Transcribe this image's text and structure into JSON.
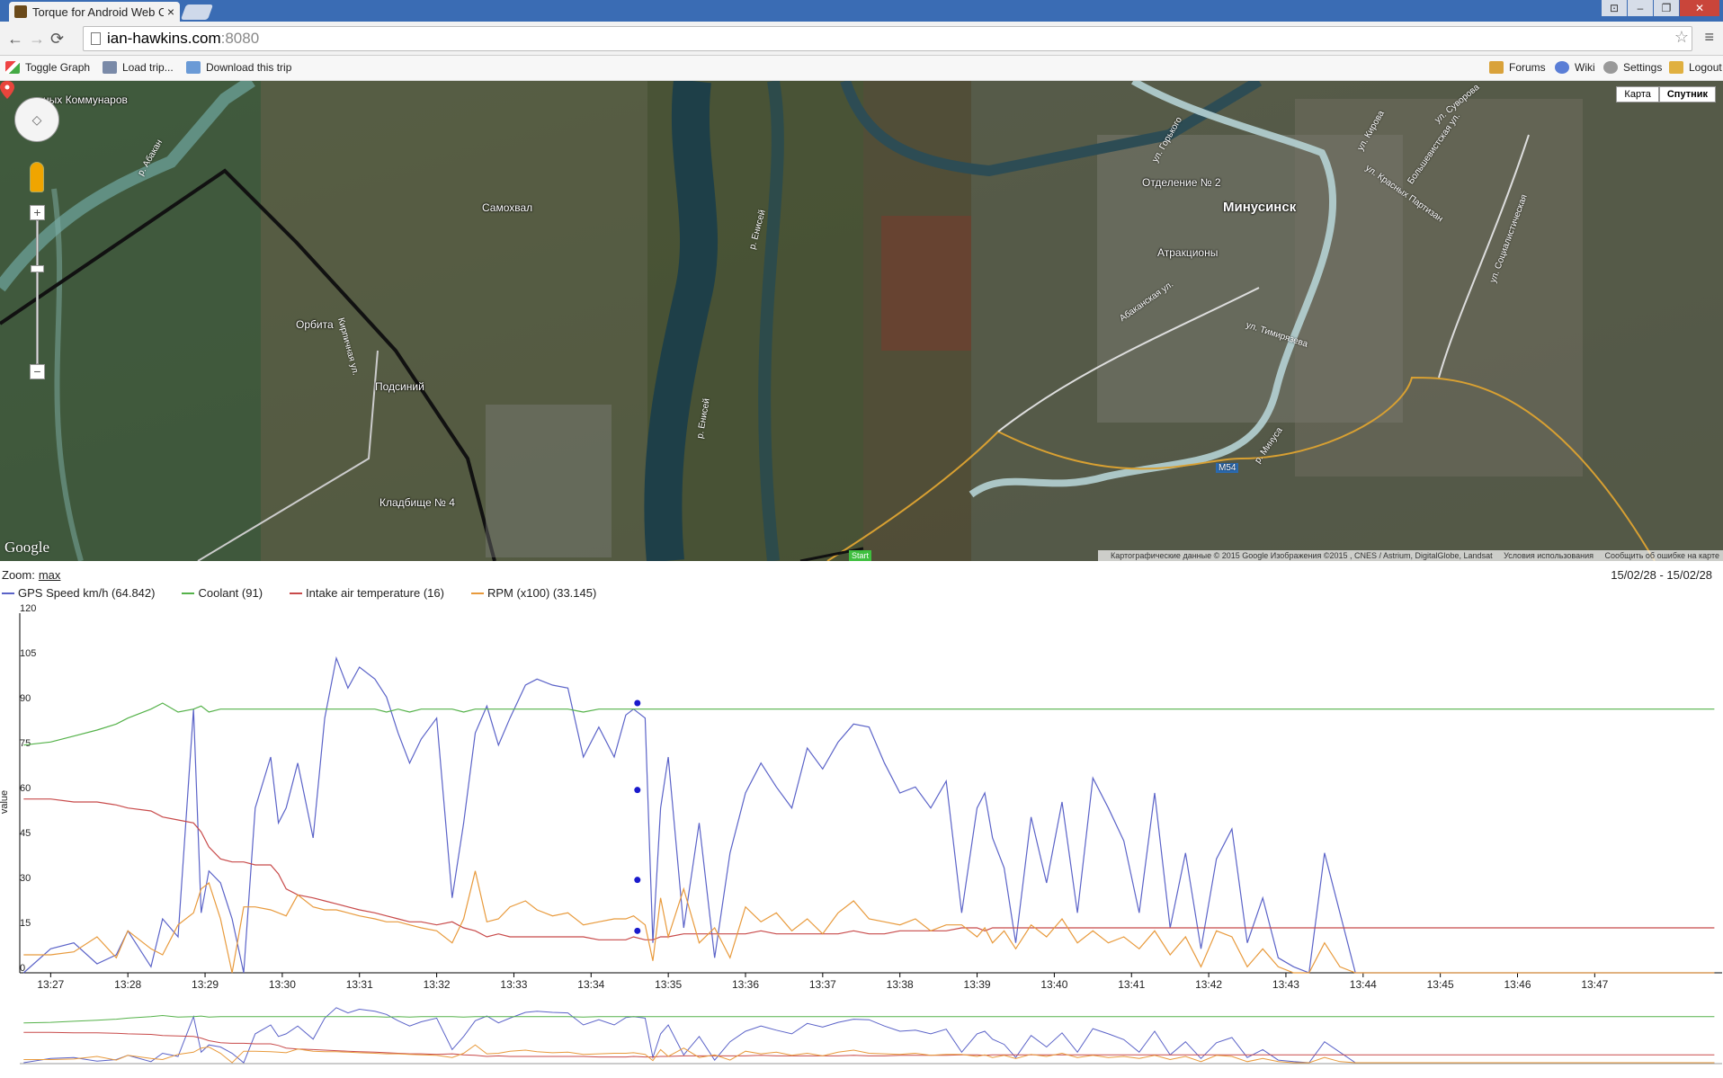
{
  "browser": {
    "tab_title": "Torque for Android Web C",
    "tab_close": "×",
    "url_host": "ian-hawkins.com",
    "url_port": ":8080",
    "window_controls": [
      "⊡",
      "–",
      "❐",
      "✕"
    ]
  },
  "toolbar": {
    "toggle_graph": "Toggle Graph",
    "load_trip": "Load trip...",
    "download_trip": "Download this trip",
    "forums": "Forums",
    "wiki": "Wiki",
    "settings": "Settings",
    "logout": "Logout"
  },
  "map": {
    "map_type_map": "Карта",
    "map_type_satellite": "Спутник",
    "labels": {
      "samokhval": "Самохвал",
      "orbita": "Орбита",
      "podsiniy": "Подсиний",
      "kladbishche": "Кладбище № 4",
      "minusinsk": "Минусинск",
      "otdelenie": "Отделение № 2",
      "attraktsiony": "Атракционы",
      "kommunarov": "ных Коммунаров"
    },
    "roads": {
      "m54": "M54",
      "timiryazeva": "ул. Тимирязева",
      "yenisei_1": "р. Енисей",
      "yenisei_2": "р. Енисей",
      "abakan": "р. Абакан",
      "minusa": "р. Минуса",
      "kirova": "ул. Кирова",
      "suvorova": "ул. Суворова",
      "krasnyh_partizan": "ул. Красных Партизан",
      "bolshevistskaya": "Большевистская ул.",
      "sotsialisticheskaya": "ул. Социалистическая",
      "gorkogo": "ул. Горького",
      "abakanskaya": "Абаканская ул.",
      "kirpichnaya": "Кирпичная ул."
    },
    "google_logo": "Google",
    "attribution": "Картографические данные © 2015 Google Изображения ©2015 , CNES / Astrium, DigitalGlobe, Landsat",
    "terms": "Условия использования",
    "report": "Сообщить об ошибке на карте",
    "start_badge": "Start"
  },
  "graph": {
    "zoom_label": "Zoom:",
    "zoom_value": "max",
    "date_range": "15/02/28 - 15/02/28",
    "ylabel": "value"
  },
  "chart_data": {
    "type": "line",
    "xlabel": "",
    "ylabel": "value",
    "ylim": [
      0,
      120
    ],
    "yticks": [
      0,
      15,
      30,
      45,
      60,
      75,
      90,
      105,
      120
    ],
    "xticks": [
      "13:27",
      "13:28",
      "13:29",
      "13:30",
      "13:31",
      "13:32",
      "13:33",
      "13:34",
      "13:35",
      "13:36",
      "13:37",
      "13:38",
      "13:39",
      "13:40",
      "13:41",
      "13:42",
      "13:43",
      "13:44",
      "13:45",
      "13:46",
      "13:47"
    ],
    "x_minutes": [
      -0.35,
      0.0,
      0.3,
      0.6,
      0.85,
      1.0,
      1.3,
      1.45,
      1.65,
      1.85,
      1.95,
      2.05,
      2.2,
      2.35,
      2.5,
      2.65,
      2.85,
      2.95,
      3.05,
      3.2,
      3.4,
      3.55,
      3.7,
      3.85,
      4.0,
      4.2,
      4.35,
      4.5,
      4.65,
      4.8,
      5.0,
      5.2,
      5.35,
      5.5,
      5.65,
      5.8,
      5.95,
      6.15,
      6.3,
      6.5,
      6.7,
      6.9,
      7.1,
      7.3,
      7.45,
      7.55,
      7.7,
      7.8,
      7.9,
      8.0,
      8.2,
      8.4,
      8.6,
      8.8,
      9.0,
      9.2,
      9.4,
      9.6,
      9.8,
      10.0,
      10.2,
      10.4,
      10.6,
      10.8,
      11.0,
      11.2,
      11.4,
      11.6,
      11.8,
      12.0,
      12.1,
      12.2,
      12.35,
      12.5,
      12.7,
      12.9,
      13.1,
      13.3,
      13.5,
      13.7,
      13.9,
      14.1,
      14.3,
      14.5,
      14.7,
      14.9,
      15.1,
      15.3,
      15.5,
      15.7,
      15.9,
      16.1,
      16.3,
      16.5,
      16.7,
      16.9,
      17.1,
      17.3,
      17.5,
      17.7,
      17.9,
      18.1,
      18.3,
      18.5,
      18.7,
      18.9,
      19.1,
      19.3,
      19.5,
      19.7,
      19.9,
      20.1,
      20.3,
      20.5,
      20.7,
      20.9,
      21.1,
      21.3,
      21.55
    ],
    "series": [
      {
        "name": "GPS Speed km/h (64.842)",
        "color": "#5b63c8",
        "values": [
          0,
          8,
          10,
          3,
          6,
          14,
          2,
          18,
          12,
          88,
          20,
          34,
          30,
          18,
          0,
          55,
          72,
          50,
          55,
          70,
          45,
          85,
          105,
          95,
          102,
          98,
          92,
          80,
          70,
          78,
          85,
          25,
          50,
          80,
          89,
          76,
          85,
          96,
          98,
          96,
          95,
          72,
          82,
          72,
          86,
          88,
          85,
          10,
          55,
          72,
          15,
          50,
          5,
          40,
          60,
          70,
          62,
          55,
          75,
          68,
          77,
          83,
          82,
          70,
          60,
          62,
          55,
          64,
          20,
          55,
          60,
          45,
          35,
          10,
          52,
          30,
          57,
          20,
          65,
          55,
          44,
          20,
          60,
          15,
          40,
          8,
          38,
          48,
          10,
          25,
          5,
          2,
          0,
          40,
          20,
          0,
          0,
          0,
          0,
          0,
          0,
          0,
          0,
          0,
          0,
          0,
          0,
          0,
          0,
          0,
          0,
          0,
          0,
          0,
          0,
          0,
          0,
          0,
          0
        ],
        "values_note_trim": true
      },
      {
        "name": "Coolant (91)",
        "color": "#55b24a",
        "values": [
          76,
          77,
          79,
          81,
          83,
          85,
          88,
          90,
          87,
          88,
          89,
          87,
          88,
          88,
          88,
          88,
          88,
          88,
          88,
          88,
          88,
          88,
          88,
          88,
          88,
          88,
          87,
          88,
          87,
          88,
          88,
          88,
          87,
          88,
          88,
          88,
          88,
          88,
          88,
          88,
          88,
          87,
          88,
          88,
          88,
          88,
          88,
          88,
          88,
          88,
          88,
          88,
          88,
          88,
          88,
          88,
          88,
          88,
          88,
          88,
          88,
          88,
          88,
          88,
          88,
          88,
          88,
          88,
          88,
          88,
          88,
          88,
          88,
          88,
          88,
          88,
          88,
          88,
          88,
          88,
          88,
          88,
          88,
          88,
          88,
          88,
          88,
          88,
          88,
          88,
          88,
          88,
          88,
          88,
          88,
          88,
          88,
          88,
          88,
          88,
          88,
          88,
          88,
          88,
          88,
          88,
          88,
          88,
          88,
          88,
          88,
          88,
          88,
          88,
          88,
          88,
          88,
          88,
          88
        ],
        "values_note_trim": true
      },
      {
        "name": "Intake air temperature (16)",
        "color": "#c84a4a",
        "values": [
          58,
          58,
          57,
          57,
          56,
          55,
          54,
          52,
          51,
          50,
          47,
          42,
          38,
          37,
          37,
          36,
          36,
          33,
          28,
          26,
          25,
          24,
          23,
          22,
          21,
          20,
          19,
          18,
          17,
          17,
          16,
          17,
          15,
          14,
          12,
          13,
          12,
          12,
          12,
          12,
          12,
          12,
          11,
          11,
          11,
          12,
          11,
          11,
          12,
          12,
          13,
          13,
          13,
          13,
          13,
          14,
          13,
          13,
          13,
          13,
          13,
          14,
          13,
          13,
          14,
          14,
          14,
          14,
          15,
          15,
          14,
          15,
          15,
          15,
          15,
          15,
          15,
          15,
          15,
          15,
          15,
          15,
          15,
          15,
          15,
          15,
          15,
          15,
          15,
          15,
          15,
          15,
          15,
          15,
          15,
          15,
          15,
          15,
          15,
          15,
          15,
          15,
          15,
          15,
          15,
          15,
          15,
          15,
          15,
          15,
          15,
          15,
          15,
          15,
          15,
          15,
          15,
          15,
          15
        ],
        "values_note_trim": true
      },
      {
        "name": "RPM (x100) (33.145)",
        "color": "#e89a3c",
        "values": [
          6,
          6,
          7,
          12,
          5,
          14,
          8,
          6,
          16,
          20,
          28,
          30,
          18,
          0,
          22,
          22,
          21,
          20,
          19,
          26,
          22,
          21,
          21,
          20,
          19,
          18,
          17,
          17,
          16,
          15,
          14,
          10,
          18,
          34,
          17,
          18,
          22,
          24,
          21,
          19,
          20,
          16,
          17,
          18,
          18,
          19,
          16,
          4,
          25,
          12,
          28,
          10,
          15,
          5,
          22,
          17,
          20,
          14,
          18,
          13,
          20,
          24,
          18,
          17,
          16,
          18,
          14,
          16,
          16,
          12,
          15,
          10,
          14,
          8,
          16,
          12,
          18,
          10,
          14,
          10,
          12,
          8,
          14,
          6,
          12,
          2,
          14,
          12,
          2,
          8,
          2,
          0,
          0,
          10,
          2,
          0,
          0,
          0,
          0,
          0,
          0,
          0,
          0,
          0,
          0,
          0,
          0,
          0,
          0,
          0,
          0,
          0,
          0,
          0,
          0,
          0,
          0,
          0,
          0
        ],
        "values_note_trim": true
      }
    ],
    "highlight_points": [
      {
        "x_minutes": 7.6,
        "values": [
          61,
          90,
          14,
          31
        ]
      }
    ]
  }
}
